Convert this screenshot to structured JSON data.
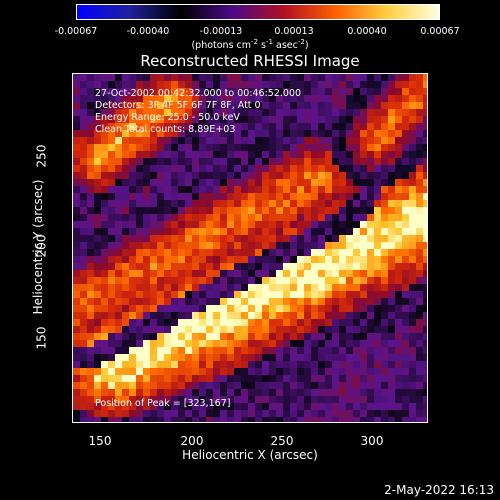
{
  "colorbar": {
    "ticks": [
      "-0.00067",
      "-0.00040",
      "-0.00013",
      "0.00013",
      "0.00040",
      "0.00067"
    ],
    "unit_main": "(photons cm",
    "unit_exp1": "-2",
    "unit_mid": " s",
    "unit_exp2": "-1",
    "unit_end": " asec",
    "unit_exp3": "-2",
    "unit_close": ")",
    "colors": [
      "#0000ff",
      "#2020a0",
      "#000000",
      "#4a0a88",
      "#b01020",
      "#ff6000",
      "#ffd040",
      "#ffffe0"
    ]
  },
  "chart_data": {
    "type": "heatmap",
    "title": "Reconstructed RHESSI Image",
    "xlabel": "Heliocentric X (arcsec)",
    "ylabel": "Heliocentric Y (arcsec)",
    "xlim": [
      138,
      328
    ],
    "ylim": [
      98,
      285
    ],
    "xticks": [
      150,
      200,
      250,
      300
    ],
    "yticks": [
      150,
      200,
      250
    ],
    "colorbar_range": [
      -0.00067,
      0.00067
    ],
    "features": [
      {
        "desc": "bright diagonal band (lower)",
        "x0": 160,
        "y0": 130,
        "x1": 328,
        "y1": 210
      },
      {
        "desc": "bright diagonal band (middle)",
        "x0": 140,
        "y0": 160,
        "x1": 270,
        "y1": 230
      },
      {
        "desc": "bright diagonal band (upper-left)",
        "x0": 150,
        "y0": 240,
        "x1": 190,
        "y1": 270
      },
      {
        "desc": "bright band (upper-right)",
        "x0": 300,
        "y0": 250,
        "x1": 328,
        "y1": 280
      }
    ],
    "peak": [
      323,
      167
    ]
  },
  "annotations": {
    "time": "27-Oct-2002 00:42:32.000 to 00:46:52.000",
    "detectors": "Detectors: 3F 4F 5F 6F 7F 8F, Att 0",
    "energy": "Energy Range: 25.0 - 50.0 keV",
    "clean": "Clean     Total counts: 8.89E+03",
    "peak": "Position of Peak = [323,167]"
  },
  "footer": "2-May-2022 16:13"
}
